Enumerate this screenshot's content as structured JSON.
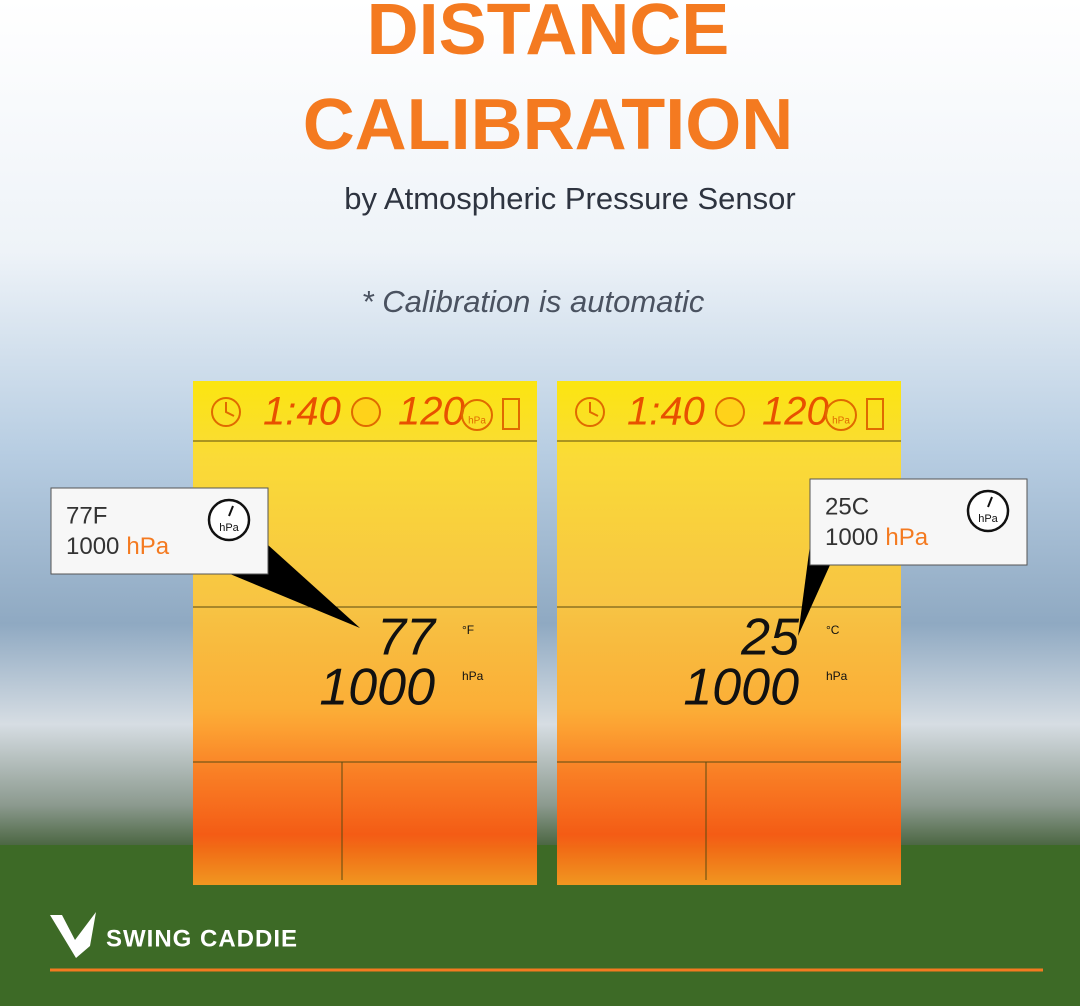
{
  "header": {
    "title_line1": "DISTANCE",
    "title_line2": "CALIBRATION",
    "subtitle": "by Atmospheric Pressure Sensor",
    "note": "* Calibration is automatic"
  },
  "panels": [
    {
      "header": {
        "time": "1:40",
        "count": "120",
        "gauge_label": "hPa"
      },
      "display": {
        "temperature": "77",
        "temperature_unit": "°F",
        "pressure": "1000",
        "pressure_unit": "hPa"
      },
      "callout": {
        "temperature": "77F",
        "pressure": "1000",
        "pressure_unit": "hPa",
        "gauge_label": "hPa"
      }
    },
    {
      "header": {
        "time": "1:40",
        "count": "120",
        "gauge_label": "hPa"
      },
      "display": {
        "temperature": "25",
        "temperature_unit": "°C",
        "pressure": "1000",
        "pressure_unit": "hPa"
      },
      "callout": {
        "temperature": "25C",
        "pressure": "1000",
        "pressure_unit": "hPa",
        "gauge_label": "hPa"
      }
    }
  ],
  "brand": "SWING CADDIE"
}
